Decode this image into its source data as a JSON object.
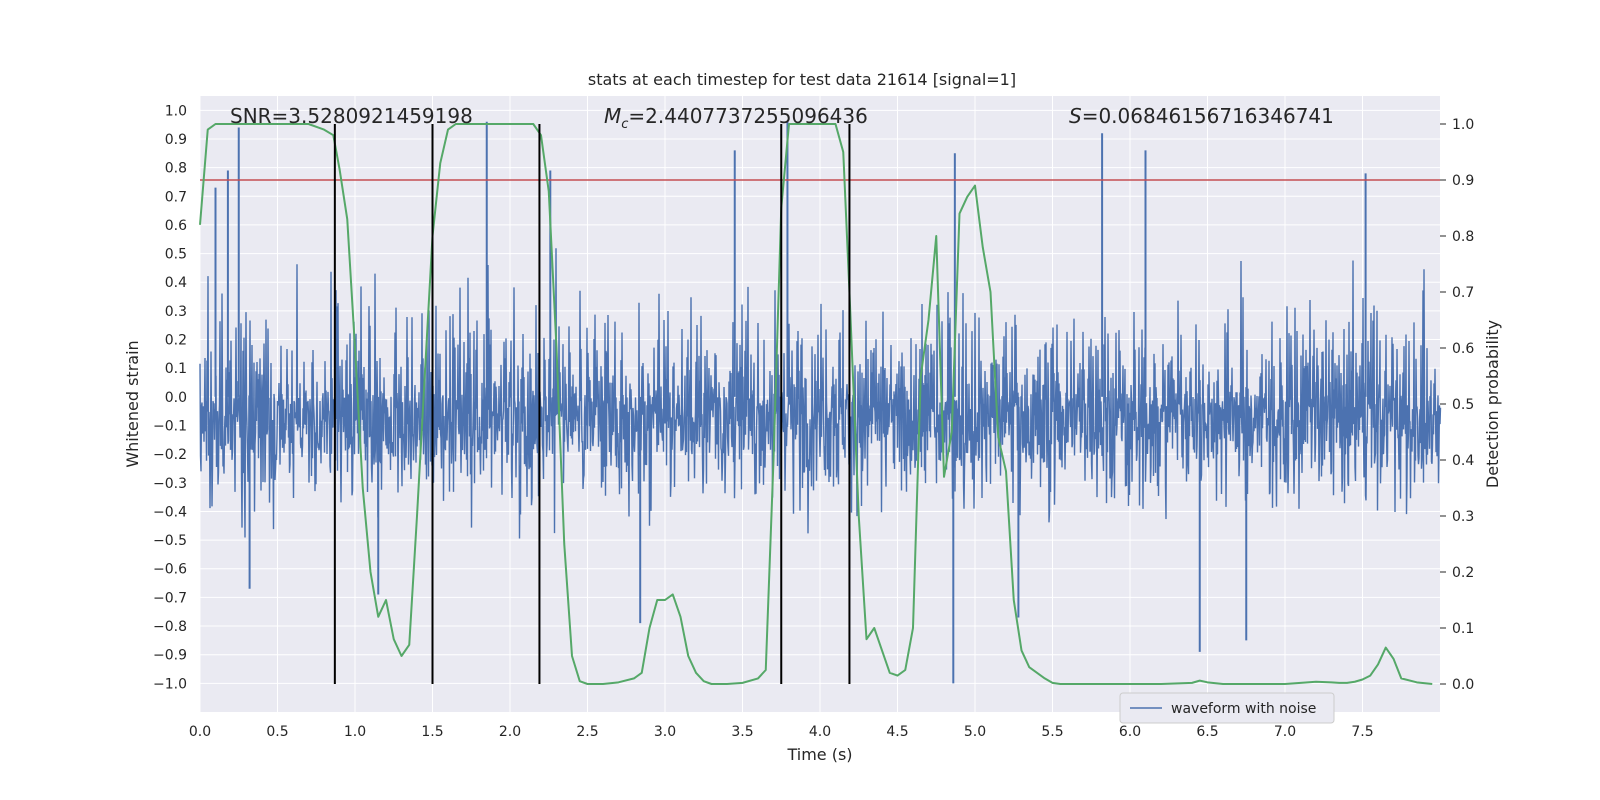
{
  "chart_data": {
    "type": "line",
    "title": "stats at each timestep for test data 21614 [signal=1]",
    "xlabel": "Time (s)",
    "ylabel": "Whitened strain",
    "y2label": "Detection probability",
    "xlim": [
      0.0,
      8.0
    ],
    "ylim": [
      -1.1,
      1.05
    ],
    "y2lim": [
      -0.05,
      1.05
    ],
    "xticks": [
      "0.0",
      "0.5",
      "1.0",
      "1.5",
      "2.0",
      "2.5",
      "3.0",
      "3.5",
      "4.0",
      "4.5",
      "5.0",
      "5.5",
      "6.0",
      "6.5",
      "7.0",
      "7.5"
    ],
    "yticks": [
      "1.0",
      "0.9",
      "0.8",
      "0.7",
      "0.6",
      "0.5",
      "0.4",
      "0.3",
      "0.2",
      "0.1",
      "0.0",
      "-0.1",
      "-0.2",
      "-0.3",
      "-0.4",
      "-0.5",
      "-0.6",
      "-0.7",
      "-0.8",
      "-0.9",
      "-1.0"
    ],
    "y2ticks": [
      "1.0",
      "0.9",
      "0.8",
      "0.7",
      "0.6",
      "0.5",
      "0.4",
      "0.3",
      "0.2",
      "0.1",
      "0.0"
    ],
    "annotations": {
      "snr": "SNR=3.5280921459198",
      "mc_symbol": "M",
      "mc_sub": "c",
      "mc_value": "=2.4407737255096436",
      "s_symbol": "S",
      "s_value": "=0.06846156716346741"
    },
    "threshold_line": {
      "y2": 0.9,
      "color": "#c44e52"
    },
    "vertical_lines": [
      0.87,
      1.5,
      2.19,
      3.75,
      4.19
    ],
    "series": [
      {
        "name": "waveform with noise",
        "color": "#4c72b0",
        "kind": "noise-envelope",
        "t_range": [
          0.0,
          8.0
        ],
        "typical_amplitude": 0.45,
        "max_abs": 1.0,
        "peaks": [
          {
            "t": 0.25,
            "v": 0.94
          },
          {
            "t": 0.18,
            "v": 0.79
          },
          {
            "t": 0.1,
            "v": 0.73
          },
          {
            "t": 1.85,
            "v": 0.96
          },
          {
            "t": 2.26,
            "v": 0.79
          },
          {
            "t": 3.45,
            "v": 0.86
          },
          {
            "t": 3.79,
            "v": 0.96
          },
          {
            "t": 4.87,
            "v": 0.85
          },
          {
            "t": 5.82,
            "v": 0.92
          },
          {
            "t": 6.1,
            "v": 0.86
          },
          {
            "t": 7.52,
            "v": 0.78
          },
          {
            "t": 4.86,
            "v": -1.0
          },
          {
            "t": 6.45,
            "v": -0.89
          },
          {
            "t": 6.75,
            "v": -0.85
          },
          {
            "t": 1.15,
            "v": -0.69
          },
          {
            "t": 0.32,
            "v": -0.67
          },
          {
            "t": 2.84,
            "v": -0.79
          },
          {
            "t": 5.28,
            "v": -0.77
          }
        ]
      },
      {
        "name": "detection probability",
        "color": "#55a868",
        "axis": "right",
        "x": [
          0.0,
          0.05,
          0.1,
          0.2,
          0.3,
          0.4,
          0.5,
          0.6,
          0.7,
          0.8,
          0.86,
          0.9,
          0.95,
          1.0,
          1.05,
          1.1,
          1.15,
          1.2,
          1.25,
          1.3,
          1.35,
          1.4,
          1.45,
          1.5,
          1.55,
          1.6,
          1.65,
          1.7,
          1.8,
          1.9,
          2.0,
          2.1,
          2.15,
          2.2,
          2.25,
          2.3,
          2.35,
          2.4,
          2.45,
          2.5,
          2.6,
          2.7,
          2.8,
          2.85,
          2.9,
          2.95,
          3.0,
          3.05,
          3.1,
          3.15,
          3.2,
          3.25,
          3.3,
          3.4,
          3.5,
          3.6,
          3.65,
          3.7,
          3.75,
          3.8,
          3.85,
          3.9,
          4.0,
          4.1,
          4.15,
          4.19,
          4.25,
          4.3,
          4.35,
          4.4,
          4.45,
          4.5,
          4.55,
          4.6,
          4.65,
          4.7,
          4.75,
          4.8,
          4.85,
          4.9,
          4.95,
          5.0,
          5.05,
          5.1,
          5.15,
          5.2,
          5.25,
          5.3,
          5.35,
          5.4,
          5.45,
          5.5,
          5.55,
          5.6,
          5.8,
          6.0,
          6.2,
          6.4,
          6.45,
          6.5,
          6.6,
          6.8,
          7.0,
          7.1,
          7.2,
          7.3,
          7.35,
          7.4,
          7.45,
          7.5,
          7.55,
          7.6,
          7.65,
          7.7,
          7.75,
          7.85,
          7.95
        ],
        "y": [
          0.82,
          0.99,
          1.0,
          1.0,
          1.0,
          1.0,
          1.0,
          1.0,
          1.0,
          0.99,
          0.98,
          0.92,
          0.83,
          0.6,
          0.35,
          0.2,
          0.12,
          0.15,
          0.08,
          0.05,
          0.07,
          0.3,
          0.55,
          0.8,
          0.93,
          0.99,
          1.0,
          1.0,
          1.0,
          1.0,
          1.0,
          1.0,
          1.0,
          0.98,
          0.88,
          0.6,
          0.25,
          0.05,
          0.005,
          0.0,
          0.0,
          0.003,
          0.01,
          0.02,
          0.1,
          0.15,
          0.15,
          0.16,
          0.12,
          0.05,
          0.02,
          0.005,
          0.0,
          0.0,
          0.002,
          0.01,
          0.025,
          0.4,
          0.85,
          1.0,
          1.0,
          1.0,
          1.0,
          1.0,
          0.95,
          0.7,
          0.3,
          0.08,
          0.1,
          0.06,
          0.02,
          0.015,
          0.025,
          0.1,
          0.55,
          0.65,
          0.8,
          0.37,
          0.45,
          0.84,
          0.87,
          0.89,
          0.78,
          0.7,
          0.44,
          0.38,
          0.15,
          0.06,
          0.03,
          0.02,
          0.01,
          0.002,
          0.0,
          0.0,
          0.0,
          0.0,
          0.0,
          0.002,
          0.006,
          0.003,
          0.0,
          0.0,
          0.0,
          0.002,
          0.004,
          0.003,
          0.002,
          0.002,
          0.004,
          0.008,
          0.015,
          0.035,
          0.065,
          0.045,
          0.01,
          0.003,
          0.0
        ]
      }
    ],
    "legend": {
      "location": "lower right",
      "entries": [
        "waveform with noise"
      ]
    },
    "grid": true
  }
}
